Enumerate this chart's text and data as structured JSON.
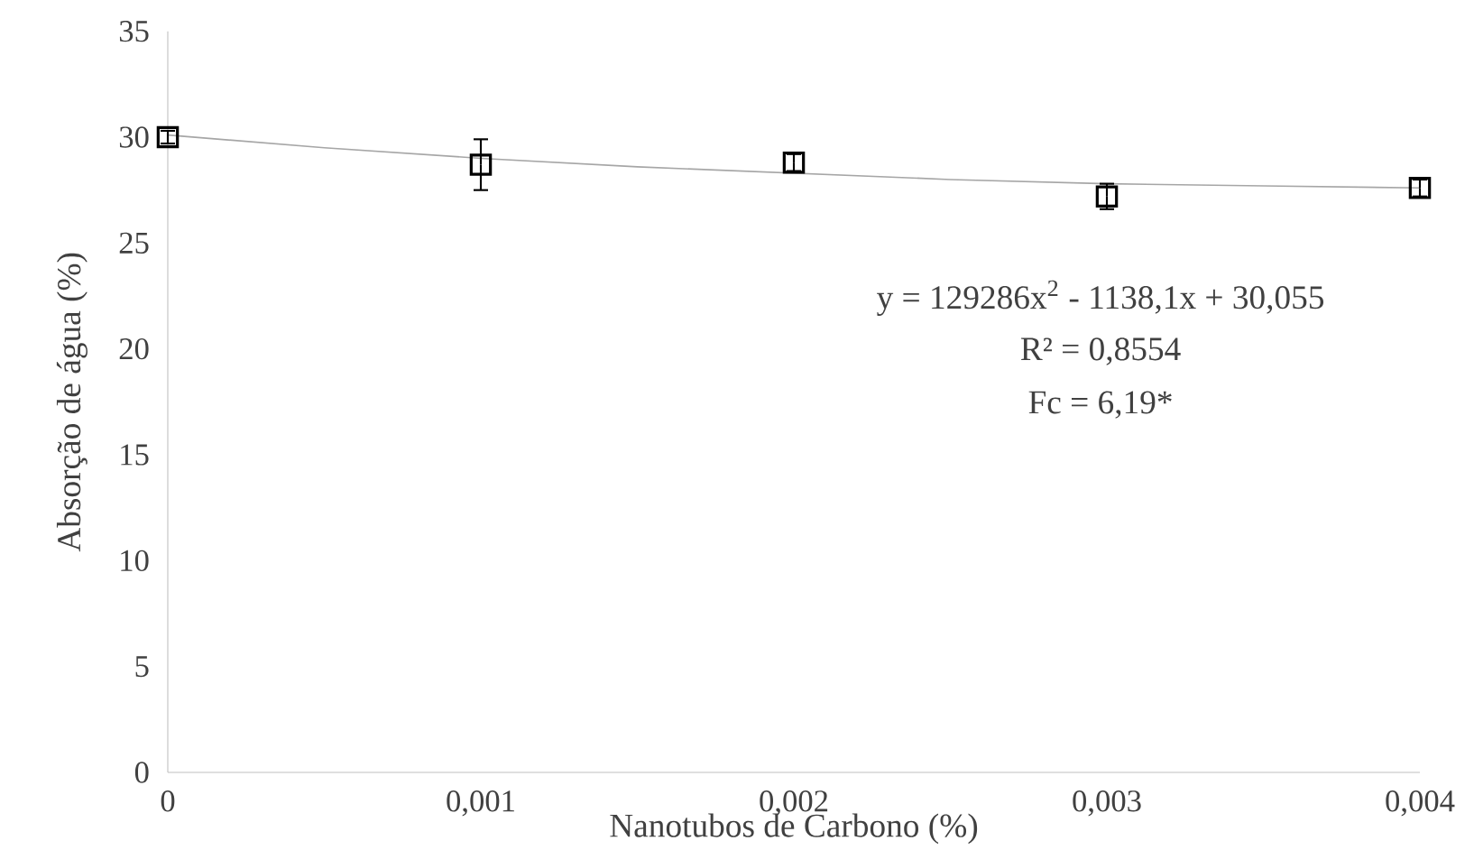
{
  "chart_data": {
    "type": "scatter",
    "xlabel": "Nanotubos de Carbono (%)",
    "ylabel": "Absorção de água (%)",
    "x": [
      0,
      0.001,
      0.002,
      0.003,
      0.004
    ],
    "series": [
      {
        "color": "#000000",
        "values": [
          30.0,
          28.7,
          28.8,
          27.2,
          27.6
        ],
        "errors": [
          0.3,
          1.2,
          0.4,
          0.6,
          0.4
        ],
        "marker": "square"
      },
      {
        "type": "line",
        "color": "#a6a6a6",
        "x": [
          0,
          0.0005,
          0.001,
          0.0015,
          0.002,
          0.0025,
          0.003,
          0.0035,
          0.004
        ],
        "values": [
          30.1,
          29.5,
          29.0,
          28.6,
          28.3,
          28.0,
          27.8,
          27.7,
          27.6
        ]
      }
    ],
    "xlim": [
      0,
      0.004
    ],
    "xticks": [
      {
        "value": 0,
        "label": "0"
      },
      {
        "value": 0.001,
        "label": "0,001"
      },
      {
        "value": 0.002,
        "label": "0,002"
      },
      {
        "value": 0.003,
        "label": "0,003"
      },
      {
        "value": 0.004,
        "label": "0,004"
      }
    ],
    "ylim": [
      0,
      35
    ],
    "yticks": [
      0,
      5,
      10,
      15,
      20,
      25,
      30,
      35
    ],
    "grid": false,
    "annotations": [
      "y = 129286x$^{2}$ - 1138,1x + 30,055",
      "R² = 0,8554",
      "Fc = 6,19*"
    ]
  }
}
